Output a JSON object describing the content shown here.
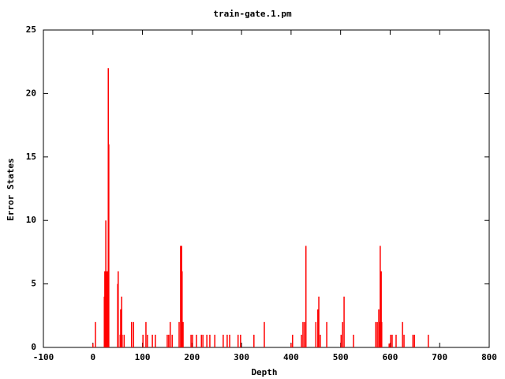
{
  "chart_data": {
    "type": "impulse",
    "title": "train-gate.1.pm",
    "xlabel": "Depth",
    "ylabel": "Error States",
    "series": [
      {
        "name": null,
        "color": "#ff0000",
        "x": [
          0,
          5,
          23,
          24,
          26,
          27,
          29,
          31,
          32,
          50,
          51,
          55,
          56,
          58,
          59,
          63,
          78,
          82,
          101,
          107,
          110,
          120,
          126,
          150,
          153,
          156,
          160,
          174,
          177,
          179,
          180,
          182,
          198,
          201,
          209,
          219,
          222,
          230,
          236,
          246,
          263,
          271,
          276,
          293,
          298,
          325,
          346,
          400,
          403,
          421,
          424,
          427,
          430,
          450,
          454,
          456,
          459,
          472,
          501,
          504,
          507,
          526,
          571,
          574,
          577,
          579,
          580,
          582,
          583,
          598,
          601,
          604,
          612,
          625,
          628,
          646,
          649,
          677
        ],
        "values": [
          0.3,
          2,
          4,
          6,
          10,
          6,
          6,
          22,
          16,
          5,
          6,
          1,
          3,
          4,
          1,
          1,
          2,
          2,
          1,
          2,
          1,
          1,
          1,
          1,
          1,
          2,
          1,
          2,
          8,
          8,
          6,
          2,
          1,
          1,
          1,
          1,
          1,
          1,
          1,
          1,
          1,
          1,
          1,
          1,
          1,
          1,
          2,
          0.3,
          1,
          1,
          2,
          2,
          8,
          2,
          3,
          4,
          1,
          2,
          1,
          2,
          4,
          1,
          2,
          2,
          3,
          2,
          8,
          6,
          2,
          0.3,
          1,
          1,
          1,
          2,
          1,
          1,
          1,
          1
        ]
      }
    ],
    "xlim": [
      -100,
      800
    ],
    "xticks": [
      -100,
      0,
      100,
      200,
      300,
      400,
      500,
      600,
      700,
      800
    ],
    "ylim": [
      0,
      25
    ],
    "yticks": [
      0,
      5,
      10,
      15,
      20,
      25
    ],
    "grid": false
  }
}
